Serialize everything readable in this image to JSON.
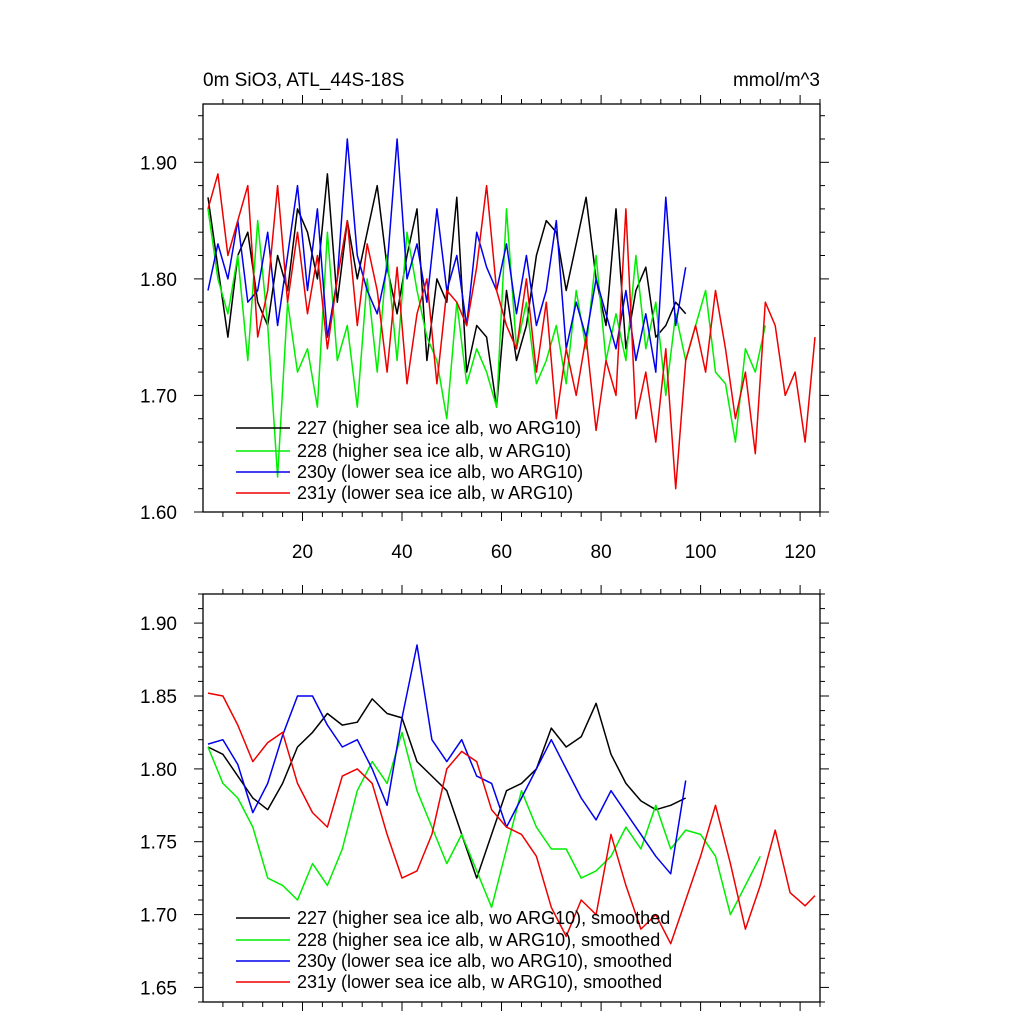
{
  "chart_data": [
    {
      "type": "line",
      "title": "0m SiO3, ATL_44S-18S",
      "units": "mmol/m^3",
      "xlabel": "",
      "ylabel": "",
      "xlim": [
        0,
        124
      ],
      "ylim": [
        1.6,
        1.95
      ],
      "xticks": [
        20,
        40,
        60,
        80,
        100,
        120
      ],
      "xtick_labels": [
        "20",
        "40",
        "60",
        "80",
        "100",
        "120"
      ],
      "yticks": [
        1.6,
        1.7,
        1.8,
        1.9
      ],
      "ytick_labels": [
        "1.60",
        "1.70",
        "1.80",
        "1.90"
      ],
      "legend_position": "bottom-left",
      "series": [
        {
          "name": "227 (higher sea ice alb, wo ARG10)",
          "color": "#000000",
          "x": [
            1,
            3,
            5,
            7,
            9,
            11,
            13,
            15,
            17,
            19,
            21,
            23,
            25,
            27,
            29,
            31,
            33,
            35,
            37,
            39,
            41,
            43,
            45,
            47,
            49,
            51,
            53,
            55,
            57,
            59,
            61,
            63,
            65,
            67,
            69,
            71,
            73,
            75,
            77,
            79,
            81,
            83,
            85,
            87,
            89,
            91,
            93,
            95,
            97
          ],
          "values": [
            1.87,
            1.81,
            1.75,
            1.82,
            1.84,
            1.78,
            1.76,
            1.82,
            1.79,
            1.86,
            1.84,
            1.8,
            1.89,
            1.78,
            1.85,
            1.8,
            1.84,
            1.88,
            1.81,
            1.77,
            1.82,
            1.86,
            1.73,
            1.8,
            1.78,
            1.87,
            1.72,
            1.76,
            1.75,
            1.69,
            1.79,
            1.73,
            1.76,
            1.82,
            1.85,
            1.84,
            1.79,
            1.83,
            1.87,
            1.8,
            1.76,
            1.86,
            1.74,
            1.79,
            1.81,
            1.75,
            1.76,
            1.78,
            1.77
          ]
        },
        {
          "name": "228 (higher sea ice alb, w ARG10)",
          "color": "#00ee00",
          "x": [
            1,
            3,
            5,
            7,
            9,
            11,
            13,
            15,
            17,
            19,
            21,
            23,
            25,
            27,
            29,
            31,
            33,
            35,
            37,
            39,
            41,
            43,
            45,
            47,
            49,
            51,
            53,
            55,
            57,
            59,
            61,
            63,
            65,
            67,
            69,
            71,
            73,
            75,
            77,
            79,
            81,
            83,
            85,
            87,
            89,
            91,
            93,
            95,
            97,
            99,
            101,
            103,
            105,
            107,
            109,
            111,
            113
          ],
          "values": [
            1.86,
            1.8,
            1.77,
            1.82,
            1.73,
            1.85,
            1.76,
            1.63,
            1.78,
            1.72,
            1.74,
            1.69,
            1.84,
            1.73,
            1.76,
            1.69,
            1.8,
            1.72,
            1.82,
            1.73,
            1.84,
            1.79,
            1.75,
            1.73,
            1.68,
            1.78,
            1.71,
            1.74,
            1.72,
            1.69,
            1.86,
            1.74,
            1.78,
            1.71,
            1.73,
            1.76,
            1.71,
            1.79,
            1.74,
            1.82,
            1.73,
            1.77,
            1.73,
            1.82,
            1.74,
            1.78,
            1.7,
            1.77,
            1.73,
            1.76,
            1.79,
            1.72,
            1.71,
            1.66,
            1.74,
            1.72,
            1.76
          ]
        },
        {
          "name": "230y (lower sea ice alb, wo ARG10)",
          "color": "#0000ee",
          "x": [
            1,
            3,
            5,
            7,
            9,
            11,
            13,
            15,
            17,
            19,
            21,
            23,
            25,
            27,
            29,
            31,
            33,
            35,
            37,
            39,
            41,
            43,
            45,
            47,
            49,
            51,
            53,
            55,
            57,
            59,
            61,
            63,
            65,
            67,
            69,
            71,
            73,
            75,
            77,
            79,
            81,
            83,
            85,
            87,
            89,
            91,
            93,
            95,
            97
          ],
          "values": [
            1.79,
            1.83,
            1.8,
            1.85,
            1.78,
            1.79,
            1.84,
            1.76,
            1.82,
            1.88,
            1.79,
            1.86,
            1.75,
            1.8,
            1.92,
            1.82,
            1.79,
            1.77,
            1.81,
            1.92,
            1.8,
            1.83,
            1.78,
            1.86,
            1.79,
            1.82,
            1.76,
            1.84,
            1.81,
            1.79,
            1.83,
            1.77,
            1.82,
            1.76,
            1.79,
            1.85,
            1.74,
            1.78,
            1.75,
            1.8,
            1.77,
            1.74,
            1.79,
            1.73,
            1.77,
            1.72,
            1.87,
            1.76,
            1.81
          ]
        },
        {
          "name": "231y (lower sea ice alb, w ARG10)",
          "color": "#ee0000",
          "x": [
            1,
            3,
            5,
            7,
            9,
            11,
            13,
            15,
            17,
            19,
            21,
            23,
            25,
            27,
            29,
            31,
            33,
            35,
            37,
            39,
            41,
            43,
            45,
            47,
            49,
            51,
            53,
            55,
            57,
            59,
            61,
            63,
            65,
            67,
            69,
            71,
            73,
            75,
            77,
            79,
            81,
            83,
            85,
            87,
            89,
            91,
            93,
            95,
            97,
            99,
            101,
            103,
            105,
            107,
            109,
            111,
            113,
            115,
            117,
            119,
            121,
            123
          ],
          "values": [
            1.86,
            1.89,
            1.82,
            1.85,
            1.88,
            1.75,
            1.79,
            1.88,
            1.78,
            1.84,
            1.77,
            1.82,
            1.74,
            1.8,
            1.85,
            1.76,
            1.83,
            1.79,
            1.72,
            1.81,
            1.71,
            1.77,
            1.8,
            1.71,
            1.79,
            1.78,
            1.76,
            1.81,
            1.88,
            1.79,
            1.76,
            1.74,
            1.8,
            1.72,
            1.78,
            1.68,
            1.74,
            1.7,
            1.75,
            1.67,
            1.73,
            1.7,
            1.86,
            1.68,
            1.72,
            1.66,
            1.74,
            1.62,
            1.73,
            1.76,
            1.72,
            1.79,
            1.74,
            1.68,
            1.72,
            1.65,
            1.78,
            1.76,
            1.7,
            1.72,
            1.66,
            1.75
          ]
        }
      ]
    },
    {
      "type": "line",
      "title": "",
      "xlabel": "",
      "ylabel": "",
      "xlim": [
        0,
        124
      ],
      "ylim": [
        1.64,
        1.92
      ],
      "xticks": [
        20,
        40,
        60,
        80,
        100,
        120
      ],
      "xtick_labels": [],
      "yticks": [
        1.65,
        1.7,
        1.75,
        1.8,
        1.85,
        1.9
      ],
      "ytick_labels": [
        "1.65",
        "1.70",
        "1.75",
        "1.80",
        "1.85",
        "1.90"
      ],
      "legend_position": "bottom-left",
      "series": [
        {
          "name": "227 (higher sea ice alb, wo ARG10), smoothed",
          "color": "#000000",
          "x": [
            1,
            4,
            7,
            10,
            13,
            16,
            19,
            22,
            25,
            28,
            31,
            34,
            37,
            40,
            43,
            46,
            49,
            52,
            55,
            58,
            61,
            64,
            67,
            70,
            73,
            76,
            79,
            82,
            85,
            88,
            91,
            94,
            97
          ],
          "values": [
            1.815,
            1.81,
            1.795,
            1.78,
            1.772,
            1.79,
            1.815,
            1.825,
            1.838,
            1.83,
            1.832,
            1.848,
            1.838,
            1.835,
            1.805,
            1.795,
            1.785,
            1.755,
            1.725,
            1.755,
            1.785,
            1.79,
            1.8,
            1.828,
            1.815,
            1.822,
            1.845,
            1.81,
            1.79,
            1.778,
            1.772,
            1.775,
            1.78
          ]
        },
        {
          "name": "228 (higher sea ice alb, w ARG10), smoothed",
          "color": "#00ee00",
          "x": [
            1,
            4,
            7,
            10,
            13,
            16,
            19,
            22,
            25,
            28,
            31,
            34,
            37,
            40,
            43,
            46,
            49,
            52,
            55,
            58,
            61,
            64,
            67,
            70,
            73,
            76,
            79,
            82,
            85,
            88,
            91,
            94,
            97,
            100,
            103,
            106,
            109,
            112
          ],
          "values": [
            1.815,
            1.79,
            1.78,
            1.76,
            1.725,
            1.72,
            1.71,
            1.735,
            1.72,
            1.745,
            1.785,
            1.805,
            1.79,
            1.825,
            1.785,
            1.76,
            1.735,
            1.755,
            1.73,
            1.705,
            1.745,
            1.785,
            1.76,
            1.745,
            1.745,
            1.725,
            1.73,
            1.74,
            1.76,
            1.745,
            1.775,
            1.745,
            1.758,
            1.755,
            1.74,
            1.7,
            1.72,
            1.74
          ]
        },
        {
          "name": "230y (lower sea ice alb, wo ARG10), smoothed",
          "color": "#0000ee",
          "x": [
            1,
            4,
            7,
            10,
            13,
            16,
            19,
            22,
            25,
            28,
            31,
            34,
            37,
            40,
            43,
            46,
            49,
            52,
            55,
            58,
            61,
            64,
            67,
            70,
            73,
            76,
            79,
            82,
            85,
            88,
            91,
            94,
            97
          ],
          "values": [
            1.817,
            1.82,
            1.803,
            1.77,
            1.79,
            1.823,
            1.85,
            1.85,
            1.83,
            1.815,
            1.82,
            1.8,
            1.775,
            1.835,
            1.885,
            1.82,
            1.805,
            1.82,
            1.795,
            1.79,
            1.76,
            1.78,
            1.8,
            1.82,
            1.8,
            1.78,
            1.765,
            1.785,
            1.77,
            1.755,
            1.74,
            1.728,
            1.792
          ]
        },
        {
          "name": "231y (lower sea ice alb, w ARG10), smoothed",
          "color": "#ee0000",
          "x": [
            1,
            4,
            7,
            10,
            13,
            16,
            19,
            22,
            25,
            28,
            31,
            34,
            37,
            40,
            43,
            46,
            49,
            52,
            55,
            58,
            61,
            64,
            67,
            70,
            73,
            76,
            79,
            82,
            85,
            88,
            91,
            94,
            97,
            100,
            103,
            106,
            109,
            112,
            115,
            118,
            121,
            123
          ],
          "values": [
            1.852,
            1.85,
            1.83,
            1.805,
            1.818,
            1.825,
            1.79,
            1.77,
            1.76,
            1.795,
            1.8,
            1.79,
            1.755,
            1.725,
            1.73,
            1.755,
            1.8,
            1.812,
            1.805,
            1.772,
            1.76,
            1.755,
            1.74,
            1.705,
            1.685,
            1.71,
            1.7,
            1.755,
            1.72,
            1.69,
            1.7,
            1.68,
            1.71,
            1.74,
            1.775,
            1.735,
            1.69,
            1.72,
            1.758,
            1.715,
            1.706,
            1.713
          ]
        }
      ]
    }
  ]
}
